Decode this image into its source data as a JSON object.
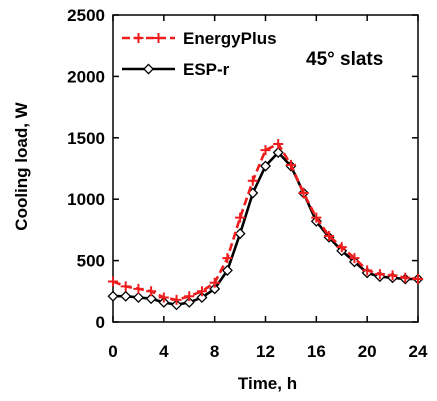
{
  "chart_data": {
    "type": "line",
    "xlabel": "Time, h",
    "ylabel": "Cooling load, W",
    "xlim": [
      0,
      24
    ],
    "ylim": [
      0,
      2500
    ],
    "xticks": [
      0,
      4,
      8,
      12,
      16,
      20,
      24
    ],
    "yticks": [
      0,
      500,
      1000,
      1500,
      2000,
      2500
    ],
    "grid": false,
    "legend_position": "top-left",
    "annotation": "45° slats",
    "series": [
      {
        "name": "EnergyPlus",
        "color": "#ee1c1c",
        "line_style": "dashed",
        "marker": "plus",
        "x": [
          0,
          1,
          2,
          3,
          4,
          5,
          6,
          7,
          8,
          9,
          10,
          11,
          12,
          13,
          14,
          15,
          16,
          17,
          18,
          19,
          20,
          21,
          22,
          23,
          24
        ],
        "values": [
          330,
          290,
          270,
          250,
          200,
          180,
          210,
          250,
          320,
          520,
          850,
          1150,
          1400,
          1450,
          1280,
          1050,
          850,
          700,
          610,
          520,
          420,
          390,
          380,
          360,
          350
        ]
      },
      {
        "name": "ESP-r",
        "color": "#000000",
        "line_style": "solid",
        "marker": "diamond",
        "x": [
          0,
          1,
          2,
          3,
          4,
          5,
          6,
          7,
          8,
          9,
          10,
          11,
          12,
          13,
          14,
          15,
          16,
          17,
          18,
          19,
          20,
          21,
          22,
          23,
          24
        ],
        "values": [
          210,
          210,
          200,
          190,
          160,
          140,
          160,
          200,
          270,
          420,
          720,
          1050,
          1270,
          1380,
          1270,
          1050,
          820,
          690,
          580,
          490,
          400,
          370,
          360,
          350,
          350
        ]
      }
    ]
  }
}
